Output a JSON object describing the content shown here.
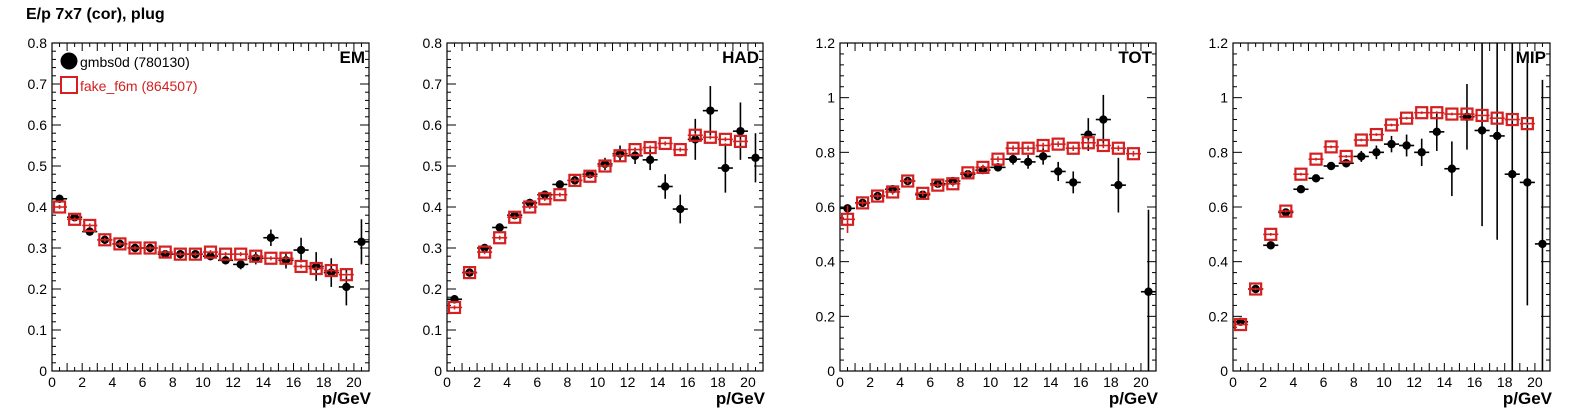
{
  "page_title": "E/p 7x7 (cor), plug",
  "colors": {
    "series1": "#000000",
    "series2": "#d42020"
  },
  "legend": {
    "entries": [
      {
        "label": "gmbs0d (780130)",
        "marker": "filled-circle",
        "color": "#000000"
      },
      {
        "label": "fake_f6m (864507)",
        "marker": "open-square",
        "color": "#d42020"
      }
    ]
  },
  "chart_data": [
    {
      "type": "scatter",
      "title": "EM",
      "xlabel": "p/GeV",
      "ylabel": "",
      "xlim": [
        0,
        21
      ],
      "ylim": [
        0,
        0.8
      ],
      "xticks": [
        0,
        2,
        4,
        6,
        8,
        10,
        12,
        14,
        16,
        18,
        20
      ],
      "yticks": [
        0,
        0.1,
        0.2,
        0.3,
        0.4,
        0.5,
        0.6,
        0.7,
        0.8
      ],
      "ytick_labels": [
        "0",
        "0.1",
        "0.2",
        "0.3",
        "0.4",
        "0.5",
        "0.6",
        "0.7",
        "0.8"
      ],
      "legend_position": "top-left",
      "series": [
        {
          "name": "gmbs0d (780130)",
          "x": [
            0.5,
            1.5,
            2.5,
            3.5,
            4.5,
            5.5,
            6.5,
            7.5,
            8.5,
            9.5,
            10.5,
            11.5,
            12.5,
            13.5,
            14.5,
            15.5,
            16.5,
            17.5,
            18.5,
            19.5,
            20.5
          ],
          "y": [
            0.42,
            0.375,
            0.34,
            0.32,
            0.31,
            0.3,
            0.3,
            0.285,
            0.285,
            0.285,
            0.28,
            0.27,
            0.26,
            0.275,
            0.325,
            0.27,
            0.295,
            0.255,
            0.24,
            0.205,
            0.315
          ],
          "err": [
            0.01,
            0.01,
            0.01,
            0.01,
            0.01,
            0.01,
            0.01,
            0.01,
            0.01,
            0.01,
            0.01,
            0.01,
            0.012,
            0.015,
            0.02,
            0.02,
            0.03,
            0.035,
            0.035,
            0.045,
            0.055
          ]
        },
        {
          "name": "fake_f6m (864507)",
          "x": [
            0.5,
            1.5,
            2.5,
            3.5,
            4.5,
            5.5,
            6.5,
            7.5,
            8.5,
            9.5,
            10.5,
            11.5,
            12.5,
            13.5,
            14.5,
            15.5,
            16.5,
            17.5,
            18.5,
            19.5
          ],
          "y": [
            0.4,
            0.37,
            0.355,
            0.32,
            0.31,
            0.3,
            0.3,
            0.29,
            0.285,
            0.285,
            0.29,
            0.285,
            0.285,
            0.28,
            0.275,
            0.275,
            0.255,
            0.25,
            0.245,
            0.235
          ],
          "err": [
            0.005,
            0.005,
            0.005,
            0.005,
            0.005,
            0.005,
            0.005,
            0.005,
            0.005,
            0.005,
            0.005,
            0.005,
            0.005,
            0.005,
            0.005,
            0.005,
            0.005,
            0.005,
            0.005,
            0.005
          ]
        }
      ]
    },
    {
      "type": "scatter",
      "title": "HAD",
      "xlabel": "p/GeV",
      "ylabel": "",
      "xlim": [
        0,
        21
      ],
      "ylim": [
        0,
        0.8
      ],
      "xticks": [
        0,
        2,
        4,
        6,
        8,
        10,
        12,
        14,
        16,
        18,
        20
      ],
      "yticks": [
        0,
        0.1,
        0.2,
        0.3,
        0.4,
        0.5,
        0.6,
        0.7,
        0.8
      ],
      "ytick_labels": [
        "0",
        "0.1",
        "0.2",
        "0.3",
        "0.4",
        "0.5",
        "0.6",
        "0.7",
        "0.8"
      ],
      "series": [
        {
          "name": "gmbs0d (780130)",
          "x": [
            0.5,
            1.5,
            2.5,
            3.5,
            4.5,
            5.5,
            6.5,
            7.5,
            8.5,
            9.5,
            10.5,
            11.5,
            12.5,
            13.5,
            14.5,
            15.5,
            16.5,
            17.5,
            18.5,
            19.5,
            20.5
          ],
          "y": [
            0.175,
            0.24,
            0.3,
            0.35,
            0.38,
            0.41,
            0.43,
            0.455,
            0.465,
            0.48,
            0.505,
            0.53,
            0.525,
            0.515,
            0.45,
            0.395,
            0.565,
            0.635,
            0.495,
            0.585,
            0.52
          ],
          "err": [
            0.01,
            0.01,
            0.01,
            0.01,
            0.01,
            0.01,
            0.01,
            0.01,
            0.01,
            0.01,
            0.015,
            0.02,
            0.02,
            0.025,
            0.03,
            0.035,
            0.05,
            0.06,
            0.06,
            0.07,
            0.06
          ]
        },
        {
          "name": "fake_f6m (864507)",
          "x": [
            0.5,
            1.5,
            2.5,
            3.5,
            4.5,
            5.5,
            6.5,
            7.5,
            8.5,
            9.5,
            10.5,
            11.5,
            12.5,
            13.5,
            14.5,
            15.5,
            16.5,
            17.5,
            18.5,
            19.5
          ],
          "y": [
            0.155,
            0.24,
            0.29,
            0.325,
            0.375,
            0.4,
            0.42,
            0.43,
            0.465,
            0.475,
            0.5,
            0.525,
            0.54,
            0.545,
            0.555,
            0.54,
            0.575,
            0.57,
            0.565,
            0.56
          ],
          "err": [
            0.005,
            0.005,
            0.005,
            0.005,
            0.005,
            0.005,
            0.005,
            0.005,
            0.005,
            0.005,
            0.005,
            0.005,
            0.005,
            0.005,
            0.005,
            0.005,
            0.005,
            0.005,
            0.005,
            0.005
          ]
        }
      ]
    },
    {
      "type": "scatter",
      "title": "TOT",
      "xlabel": "p/GeV",
      "ylabel": "",
      "xlim": [
        0,
        21
      ],
      "ylim": [
        0,
        1.2
      ],
      "xticks": [
        0,
        2,
        4,
        6,
        8,
        10,
        12,
        14,
        16,
        18,
        20
      ],
      "yticks": [
        0,
        0.2,
        0.4,
        0.6,
        0.8,
        1.0,
        1.2
      ],
      "ytick_labels": [
        "0",
        "0.2",
        "0.4",
        "0.6",
        "0.8",
        "1",
        "1.2"
      ],
      "series": [
        {
          "name": "gmbs0d (780130)",
          "x": [
            0.5,
            1.5,
            2.5,
            3.5,
            4.5,
            5.5,
            6.5,
            7.5,
            8.5,
            9.5,
            10.5,
            11.5,
            12.5,
            13.5,
            14.5,
            15.5,
            16.5,
            17.5,
            18.5,
            20.5
          ],
          "y": [
            0.595,
            0.615,
            0.64,
            0.665,
            0.695,
            0.645,
            0.685,
            0.695,
            0.72,
            0.735,
            0.745,
            0.775,
            0.765,
            0.785,
            0.73,
            0.69,
            0.865,
            0.92,
            0.68,
            0.29
          ],
          "err": [
            0.01,
            0.01,
            0.01,
            0.01,
            0.01,
            0.01,
            0.01,
            0.01,
            0.01,
            0.01,
            0.015,
            0.02,
            0.025,
            0.03,
            0.035,
            0.04,
            0.06,
            0.09,
            0.1,
            0.3
          ]
        },
        {
          "name": "fake_f6m (864507)",
          "x": [
            0.5,
            1.5,
            2.5,
            3.5,
            4.5,
            5.5,
            6.5,
            7.5,
            8.5,
            9.5,
            10.5,
            11.5,
            12.5,
            13.5,
            14.5,
            15.5,
            16.5,
            17.5,
            18.5,
            19.5
          ],
          "y": [
            0.555,
            0.615,
            0.64,
            0.655,
            0.695,
            0.65,
            0.68,
            0.685,
            0.725,
            0.745,
            0.775,
            0.815,
            0.815,
            0.825,
            0.83,
            0.815,
            0.835,
            0.825,
            0.815,
            0.795
          ],
          "err": [
            0.05,
            0.01,
            0.01,
            0.01,
            0.01,
            0.01,
            0.01,
            0.01,
            0.01,
            0.01,
            0.01,
            0.01,
            0.01,
            0.01,
            0.01,
            0.01,
            0.01,
            0.01,
            0.01,
            0.01
          ]
        }
      ]
    },
    {
      "type": "scatter",
      "title": "MIP",
      "xlabel": "p/GeV",
      "ylabel": "",
      "xlim": [
        0,
        21
      ],
      "ylim": [
        0,
        1.2
      ],
      "xticks": [
        0,
        2,
        4,
        6,
        8,
        10,
        12,
        14,
        16,
        18,
        20
      ],
      "yticks": [
        0,
        0.2,
        0.4,
        0.6,
        0.8,
        1.0,
        1.2
      ],
      "ytick_labels": [
        "0",
        "0.2",
        "0.4",
        "0.6",
        "0.8",
        "1",
        "1.2"
      ],
      "series": [
        {
          "name": "gmbs0d (780130)",
          "x": [
            0.5,
            1.5,
            2.5,
            3.5,
            4.5,
            5.5,
            6.5,
            7.5,
            8.5,
            9.5,
            10.5,
            11.5,
            12.5,
            13.5,
            14.5,
            15.5,
            16.5,
            17.5,
            18.5,
            19.5,
            20.5
          ],
          "y": [
            0.18,
            0.3,
            0.46,
            0.58,
            0.665,
            0.705,
            0.75,
            0.76,
            0.785,
            0.8,
            0.83,
            0.825,
            0.8,
            0.875,
            0.74,
            0.93,
            0.88,
            0.86,
            0.72,
            0.69,
            0.465
          ],
          "err": [
            0.01,
            0.01,
            0.01,
            0.01,
            0.01,
            0.01,
            0.01,
            0.015,
            0.02,
            0.025,
            0.03,
            0.04,
            0.05,
            0.07,
            0.1,
            0.12,
            0.35,
            0.38,
            0.75,
            0.45,
            0.6
          ]
        },
        {
          "name": "fake_f6m (864507)",
          "x": [
            0.5,
            1.5,
            2.5,
            3.5,
            4.5,
            5.5,
            6.5,
            7.5,
            8.5,
            9.5,
            10.5,
            11.5,
            12.5,
            13.5,
            14.5,
            15.5,
            16.5,
            17.5,
            18.5,
            19.5
          ],
          "y": [
            0.17,
            0.3,
            0.5,
            0.585,
            0.72,
            0.775,
            0.82,
            0.785,
            0.845,
            0.865,
            0.9,
            0.925,
            0.945,
            0.945,
            0.94,
            0.94,
            0.935,
            0.925,
            0.92,
            0.905
          ],
          "err": [
            0.005,
            0.005,
            0.005,
            0.005,
            0.005,
            0.005,
            0.005,
            0.005,
            0.005,
            0.005,
            0.005,
            0.005,
            0.005,
            0.005,
            0.005,
            0.005,
            0.005,
            0.005,
            0.005,
            0.005
          ]
        }
      ]
    }
  ]
}
